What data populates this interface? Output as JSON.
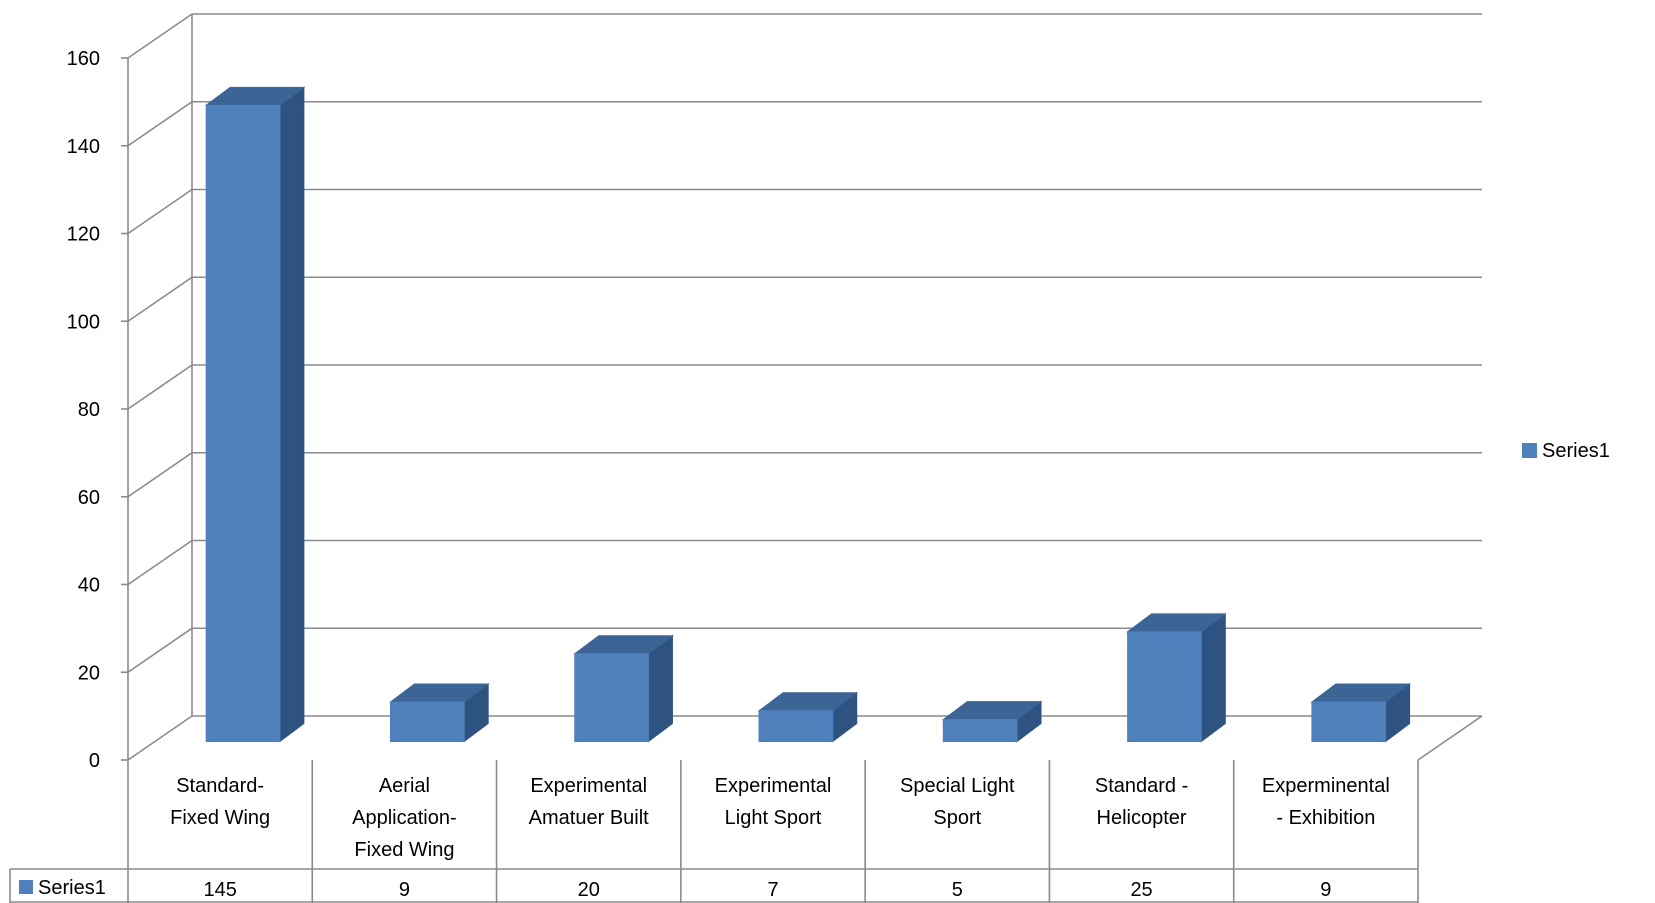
{
  "chart_data": {
    "type": "bar",
    "style": "3d-column-with-data-table",
    "categories": [
      [
        "Standard-",
        "Fixed Wing"
      ],
      [
        "Aerial",
        "Application-",
        "Fixed Wing"
      ],
      [
        "Experimental",
        "Amatuer Built"
      ],
      [
        "Experimental",
        "Light Sport"
      ],
      [
        "Special Light",
        "Sport"
      ],
      [
        "Standard -",
        "Helicopter"
      ],
      [
        "Experminental",
        "- Exhibition"
      ]
    ],
    "series": [
      {
        "name": "Series1",
        "values": [
          145,
          9,
          20,
          7,
          5,
          25,
          9
        ]
      }
    ],
    "ylim": [
      0,
      160
    ],
    "yticks": [
      0,
      20,
      40,
      60,
      80,
      100,
      120,
      140,
      160
    ],
    "grid": true,
    "legend": {
      "placement": "right",
      "label": "Series1"
    },
    "data_table": {
      "row_label": "Series1",
      "values": [
        "145",
        "9",
        "20",
        "7",
        "5",
        "25",
        "9"
      ]
    },
    "colors": {
      "bar_front": "#4f81bd",
      "bar_side": "#2f5381",
      "bar_top": "#3c6495",
      "grid": "#8a8a8a"
    }
  }
}
